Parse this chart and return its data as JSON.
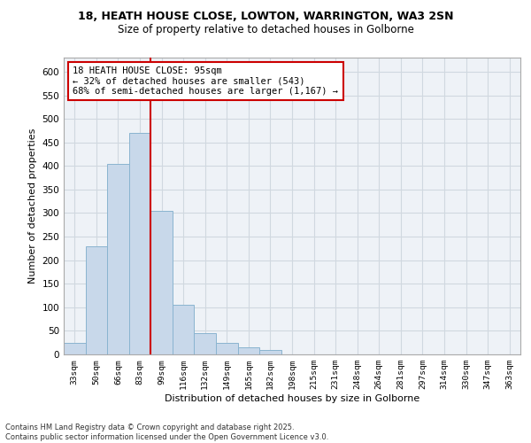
{
  "title_line1": "18, HEATH HOUSE CLOSE, LOWTON, WARRINGTON, WA3 2SN",
  "title_line2": "Size of property relative to detached houses in Golborne",
  "xlabel": "Distribution of detached houses by size in Golborne",
  "ylabel": "Number of detached properties",
  "categories": [
    "33sqm",
    "50sqm",
    "66sqm",
    "83sqm",
    "99sqm",
    "116sqm",
    "132sqm",
    "149sqm",
    "165sqm",
    "182sqm",
    "198sqm",
    "215sqm",
    "231sqm",
    "248sqm",
    "264sqm",
    "281sqm",
    "297sqm",
    "314sqm",
    "330sqm",
    "347sqm",
    "363sqm"
  ],
  "values": [
    25,
    230,
    405,
    470,
    305,
    105,
    45,
    25,
    15,
    10,
    0,
    0,
    0,
    0,
    0,
    0,
    0,
    0,
    0,
    0,
    0
  ],
  "bar_color": "#c8d8ea",
  "bar_edge_color": "#8ab4d0",
  "vline_color": "#cc0000",
  "vline_x": 3.5,
  "annotation_title": "18 HEATH HOUSE CLOSE: 95sqm",
  "annotation_line1": "← 32% of detached houses are smaller (543)",
  "annotation_line2": "68% of semi-detached houses are larger (1,167) →",
  "annotation_box_color": "#cc0000",
  "annotation_fill": "#ffffff",
  "ylim": [
    0,
    630
  ],
  "yticks": [
    0,
    50,
    100,
    150,
    200,
    250,
    300,
    350,
    400,
    450,
    500,
    550,
    600
  ],
  "footer_line1": "Contains HM Land Registry data © Crown copyright and database right 2025.",
  "footer_line2": "Contains public sector information licensed under the Open Government Licence v3.0.",
  "grid_color": "#d0d8e0",
  "background_color": "#eef2f7"
}
